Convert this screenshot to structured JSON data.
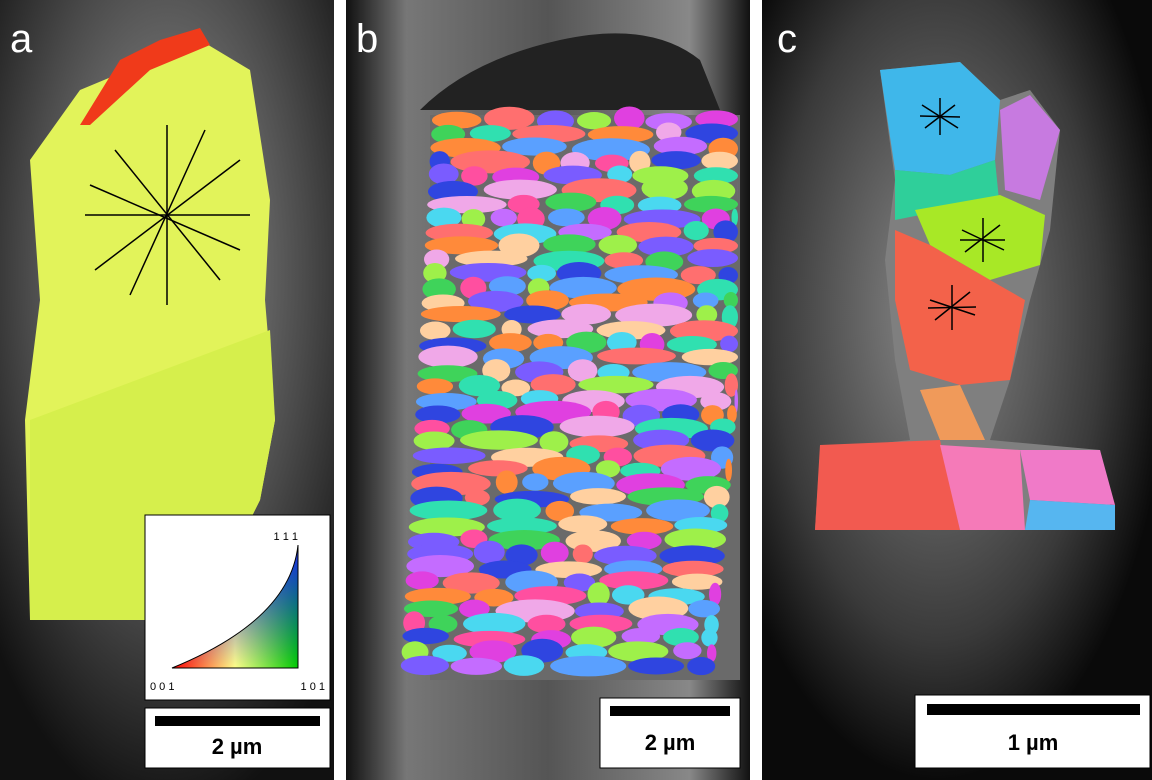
{
  "panels": [
    {
      "label": "a",
      "scale_bar": "2 µm"
    },
    {
      "label": "b",
      "scale_bar": "2 µm"
    },
    {
      "label": "c",
      "scale_bar": "1 µm"
    }
  ],
  "ipf_legend": {
    "top": "1 1 1",
    "left": "0 0 1",
    "right": "1 0 1"
  }
}
